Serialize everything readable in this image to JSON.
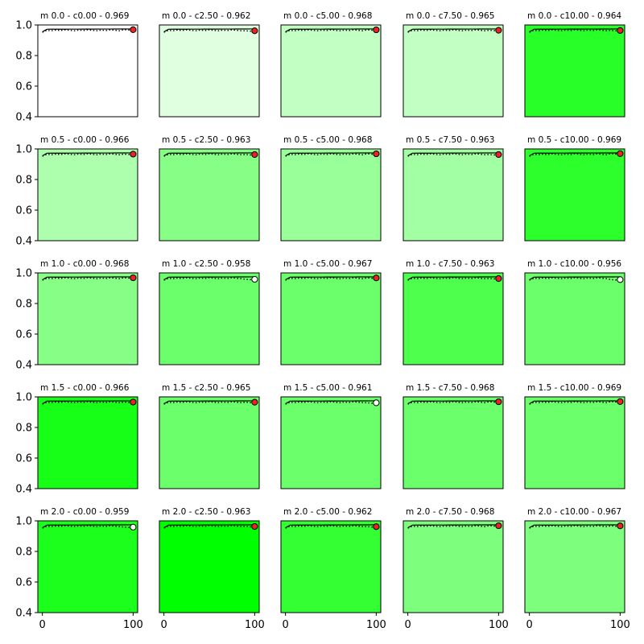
{
  "chart_data": {
    "type": "line",
    "layout": {
      "rows": 5,
      "cols": 5
    },
    "shared_x_ticks": [
      "0",
      "100"
    ],
    "shared_y_ticks": [
      "0.4",
      "0.6",
      "0.8",
      "1.0"
    ],
    "xlim": [
      -5,
      105
    ],
    "ylim": [
      0.4,
      1.0
    ],
    "x": [
      0,
      5,
      10,
      15,
      20,
      25,
      30,
      35,
      40,
      45,
      50,
      55,
      60,
      65,
      70,
      75,
      80,
      85,
      90,
      95,
      100
    ],
    "line_style": {
      "solid_color": "#000000",
      "dotted_color": "#000000"
    },
    "panels": [
      {
        "title": "m 0.0 - c0.00 - 0.969",
        "bg": "#ffffff",
        "marker_fill": "#ee2222",
        "final": 0.969
      },
      {
        "title": "m 0.0 - c2.50 - 0.962",
        "bg": "#e0ffe0",
        "marker_fill": "#ee2222",
        "final": 0.962
      },
      {
        "title": "m 0.0 - c5.00 - 0.968",
        "bg": "#c2ffc2",
        "marker_fill": "#ee2222",
        "final": 0.968
      },
      {
        "title": "m 0.0 - c7.50 - 0.965",
        "bg": "#c2ffc2",
        "marker_fill": "#ee2222",
        "final": 0.965
      },
      {
        "title": "m 0.0 - c10.00 - 0.964",
        "bg": "#28ff28",
        "marker_fill": "#ee2222",
        "final": 0.964
      },
      {
        "title": "m 0.5 - c0.00 - 0.966",
        "bg": "#adffad",
        "marker_fill": "#ee2222",
        "final": 0.966
      },
      {
        "title": "m 0.5 - c2.50 - 0.963",
        "bg": "#87ff87",
        "marker_fill": "#ee2222",
        "final": 0.963
      },
      {
        "title": "m 0.5 - c5.00 - 0.968",
        "bg": "#99ff99",
        "marker_fill": "#ee2222",
        "final": 0.968
      },
      {
        "title": "m 0.5 - c7.50 - 0.963",
        "bg": "#a3ffa3",
        "marker_fill": "#ee2222",
        "final": 0.963
      },
      {
        "title": "m 0.5 - c10.00 - 0.969",
        "bg": "#2cff2c",
        "marker_fill": "#ee2222",
        "final": 0.969
      },
      {
        "title": "m 1.0 - c0.00 - 0.968",
        "bg": "#87ff87",
        "marker_fill": "#ee2222",
        "final": 0.968
      },
      {
        "title": "m 1.0 - c2.50 - 0.958",
        "bg": "#6cff6c",
        "marker_fill": "#ffffff",
        "final": 0.958
      },
      {
        "title": "m 1.0 - c5.00 - 0.967",
        "bg": "#6cff6c",
        "marker_fill": "#ee2222",
        "final": 0.967
      },
      {
        "title": "m 1.0 - c7.50 - 0.963",
        "bg": "#4eff4e",
        "marker_fill": "#ee2222",
        "final": 0.963
      },
      {
        "title": "m 1.0 - c10.00 - 0.956",
        "bg": "#6cff6c",
        "marker_fill": "#ffffff",
        "final": 0.956
      },
      {
        "title": "m 1.5 - c0.00 - 0.966",
        "bg": "#17ff17",
        "marker_fill": "#ee2222",
        "final": 0.966
      },
      {
        "title": "m 1.5 - c2.50 - 0.965",
        "bg": "#6cff6c",
        "marker_fill": "#ee2222",
        "final": 0.965
      },
      {
        "title": "m 1.5 - c5.00 - 0.961",
        "bg": "#6cff6c",
        "marker_fill": "#ffffff",
        "final": 0.961
      },
      {
        "title": "m 1.5 - c7.50 - 0.968",
        "bg": "#6cff6c",
        "marker_fill": "#ee2222",
        "final": 0.968
      },
      {
        "title": "m 1.5 - c10.00 - 0.969",
        "bg": "#6cff6c",
        "marker_fill": "#ee2222",
        "final": 0.969
      },
      {
        "title": "m 2.0 - c0.00 - 0.959",
        "bg": "#1cff1c",
        "marker_fill": "#ffffff",
        "final": 0.959
      },
      {
        "title": "m 2.0 - c2.50 - 0.963",
        "bg": "#00ff00",
        "marker_fill": "#ee2222",
        "final": 0.963
      },
      {
        "title": "m 2.0 - c5.00 - 0.962",
        "bg": "#33ff33",
        "marker_fill": "#ee2222",
        "final": 0.962
      },
      {
        "title": "m 2.0 - c7.50 - 0.968",
        "bg": "#7dff7d",
        "marker_fill": "#ee2222",
        "final": 0.968
      },
      {
        "title": "m 2.0 - c10.00 - 0.967",
        "bg": "#7dff7d",
        "marker_fill": "#ee2222",
        "final": 0.967
      }
    ]
  }
}
